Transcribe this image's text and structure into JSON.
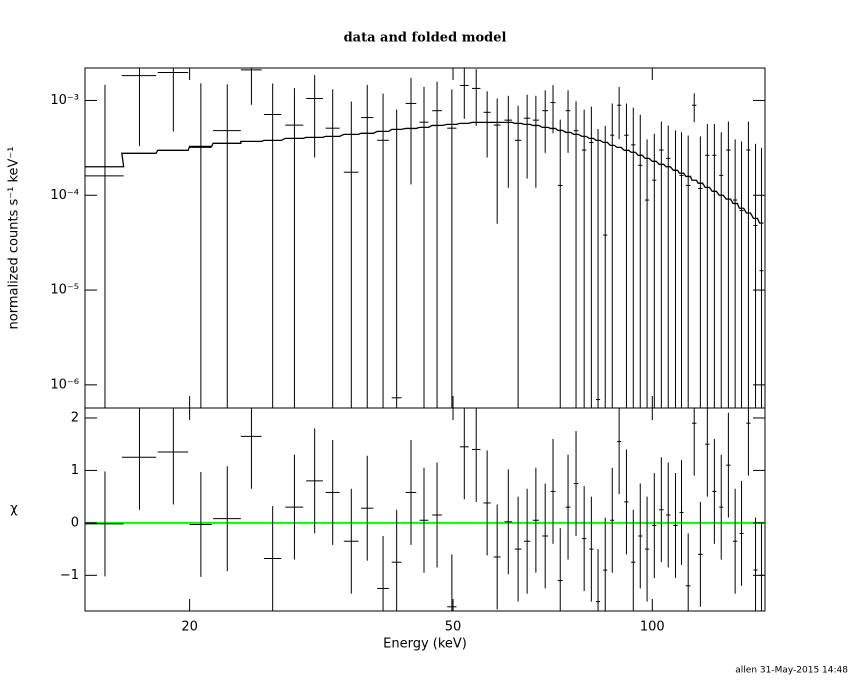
{
  "chart_data": [
    {
      "type": "errorbar",
      "title": "data and folded model",
      "ylabel": "normalized counts s⁻¹ keV⁻¹",
      "xscale": "log",
      "yscale": "log",
      "xlim": [
        13.9,
        148
      ],
      "ylim": [
        5.7e-07,
        0.0022
      ],
      "yticks": [
        {
          "value": 1e-06,
          "label": "10⁻⁶"
        },
        {
          "value": 1e-05,
          "label": "10⁻⁵"
        },
        {
          "value": 0.0001,
          "label": "10⁻⁴"
        },
        {
          "value": 0.001,
          "label": "10⁻³"
        }
      ],
      "x": [
        14.9,
        16.8,
        18.9,
        20.8,
        22.8,
        24.8,
        26.7,
        28.8,
        30.9,
        32.9,
        35.1,
        37.1,
        39.2,
        41.1,
        43.2,
        45.2,
        47.3,
        49.8,
        52.0,
        54.2,
        56.3,
        58.3,
        60.6,
        62.7,
        64.7,
        66.7,
        68.9,
        70.8,
        72.6,
        74.6,
        76.7,
        78.9,
        80.9,
        82.8,
        84.9,
        87.0,
        89.1,
        91.4,
        93.6,
        95.9,
        98.2,
        100.7,
        103.2,
        105.7,
        108.4,
        110.7,
        113.3,
        115.7,
        118.2,
        121.1,
        124.1,
        127.1,
        130.3,
        133.4,
        136.4,
        139.7,
        143.2,
        146.2
      ],
      "xerr": [
        1.0,
        1.0,
        1.0,
        0.8,
        1.1,
        0.9,
        0.8,
        0.9,
        0.9,
        0.8,
        0.9,
        0.8,
        0.8,
        0.7,
        0.8,
        0.7,
        0.8,
        0.8,
        0.8,
        0.8,
        0.7,
        0.7,
        0.8,
        0.7,
        0.7,
        0.7,
        0.7,
        0.6,
        0.6,
        0.6,
        0.6,
        0.6,
        0.6,
        0.6,
        0.6,
        0.6,
        0.6,
        0.7,
        0.7,
        0.7,
        0.7,
        0.7,
        0.8,
        0.8,
        0.8,
        0.8,
        0.9,
        0.9,
        0.9,
        0.9,
        0.9,
        0.9,
        1.0,
        1.0,
        1.0,
        1.0,
        1.0,
        1.0
      ],
      "series": [
        {
          "style": "errorbar",
          "color": "#000000",
          "values": [
            0.00016,
            0.00183,
            0.00197,
            0.00032,
            0.00048,
            0.0021,
            0.00071,
            0.00055,
            0.00105,
            0.00051,
            0.000175,
            0.00066,
            0.00038,
            7.3e-07,
            0.00093,
            0.00059,
            0.00078,
            0.00051,
            0.00144,
            0.00134,
            0.00075,
            0.00055,
            0.00062,
            0.00038,
            0.00065,
            0.00062,
            0.00078,
            0.00095,
            0.000127,
            0.00078,
            0.00048,
            0.0003,
            0.00036,
            7e-07,
            3.8e-05,
            0.00043,
            0.00089,
            0.00043,
            0.00034,
            0.000207,
            8.9e-05,
            0.000144,
            0.0003,
            0.000245,
            0.000184,
            0.000162,
            0.000127,
            0.00089,
            0.000118,
            0.000264,
            0.000264,
            0.000162,
            0.0003,
            8.9e-05,
            6.9e-05,
            0.0003,
            4.8e-05,
            1.6e-05
          ],
          "errors": [
            0.0013,
            0.0015,
            0.0015,
            0.0012,
            0.001,
            0.0012,
            0.0008,
            0.0008,
            0.0008,
            0.0008,
            0.0008,
            0.0008,
            0.0008,
            0.0008,
            0.0008,
            0.0008,
            0.0008,
            0.0008,
            0.0008,
            0.0008,
            0.0005,
            0.0005,
            0.0005,
            0.0005,
            0.0005,
            0.0005,
            0.0005,
            0.0005,
            0.0005,
            0.0005,
            0.0005,
            0.0005,
            0.0005,
            0.0005,
            0.0005,
            0.0005,
            0.0005,
            0.0005,
            0.0005,
            0.0005,
            0.0003,
            0.0003,
            0.0003,
            0.0003,
            0.0003,
            0.0003,
            0.0003,
            0.0003,
            0.0003,
            0.0003,
            0.0003,
            0.0003,
            0.0003,
            0.0003,
            0.0003,
            0.0003,
            0.0003,
            0.0003
          ]
        },
        {
          "style": "step",
          "color": "#000000",
          "values": [
            0.0002,
            0.000277,
            0.000298,
            0.000328,
            0.000353,
            0.00037,
            0.000379,
            0.000398,
            0.000408,
            0.000418,
            0.000439,
            0.00045,
            0.000472,
            0.000495,
            0.000507,
            0.00052,
            0.000545,
            0.000559,
            0.000573,
            0.000587,
            0.000587,
            0.000587,
            0.000587,
            0.000573,
            0.000559,
            0.000545,
            0.00052,
            0.000507,
            0.000483,
            0.000461,
            0.000439,
            0.000418,
            0.000398,
            0.000379,
            0.000361,
            0.000336,
            0.00032,
            0.000298,
            0.000284,
            0.000264,
            0.000245,
            0.000228,
            0.000212,
            0.0002,
            0.000183,
            0.000171,
            0.000158,
            0.000144,
            0.000134,
            0.000121,
            0.00011,
            0.0001,
            9.1e-05,
            8.2e-05,
            7.3e-05,
            6.5e-05,
            5.7e-05,
            5.1e-05
          ]
        }
      ]
    },
    {
      "type": "errorbar",
      "xlabel": "Energy (keV)",
      "ylabel": "χ",
      "yscale": "linear",
      "ylim": [
        -1.68,
        2.19
      ],
      "yticks": [
        {
          "value": -1,
          "label": "−1"
        },
        0,
        1,
        2
      ],
      "xticks": [
        20,
        50,
        100
      ],
      "reference_line": 0,
      "reference_color": "#00ff00",
      "series": [
        {
          "style": "errorbar",
          "color": "#000000",
          "values": [
            -0.02,
            1.25,
            1.35,
            -0.03,
            0.08,
            1.65,
            -0.68,
            0.3,
            0.8,
            0.58,
            -0.35,
            0.28,
            -1.25,
            -0.75,
            0.58,
            0.05,
            0.15,
            -1.6,
            1.45,
            1.4,
            0.38,
            -0.65,
            0.02,
            -0.5,
            -0.35,
            0.05,
            -0.25,
            0.6,
            -1.1,
            0.3,
            0.75,
            -0.3,
            -0.5,
            -1.5,
            -0.9,
            0.05,
            1.55,
            0.4,
            -0.75,
            -0.25,
            -0.5,
            -0.05,
            0.25,
            0.15,
            -0.05,
            0.2,
            -1.2,
            1.9,
            -0.6,
            1.5,
            0.6,
            0.3,
            1.1,
            -0.35,
            -0.2,
            1.9,
            -0.9,
            -1.0
          ],
          "errors": [
            1,
            1,
            1,
            1,
            1,
            1,
            1,
            1,
            1,
            1,
            1,
            1,
            1,
            1,
            1,
            1,
            1,
            1,
            1,
            1,
            1,
            1,
            1,
            1,
            1,
            1,
            1,
            1,
            1,
            1,
            1,
            1,
            1,
            1,
            1,
            1,
            1,
            1,
            1,
            1,
            1,
            1,
            1,
            1,
            1,
            1,
            1,
            1,
            1,
            1,
            1,
            1,
            1,
            1,
            1,
            1,
            1,
            1
          ]
        }
      ]
    }
  ],
  "footer": "allen 31-May-2015 14:48"
}
